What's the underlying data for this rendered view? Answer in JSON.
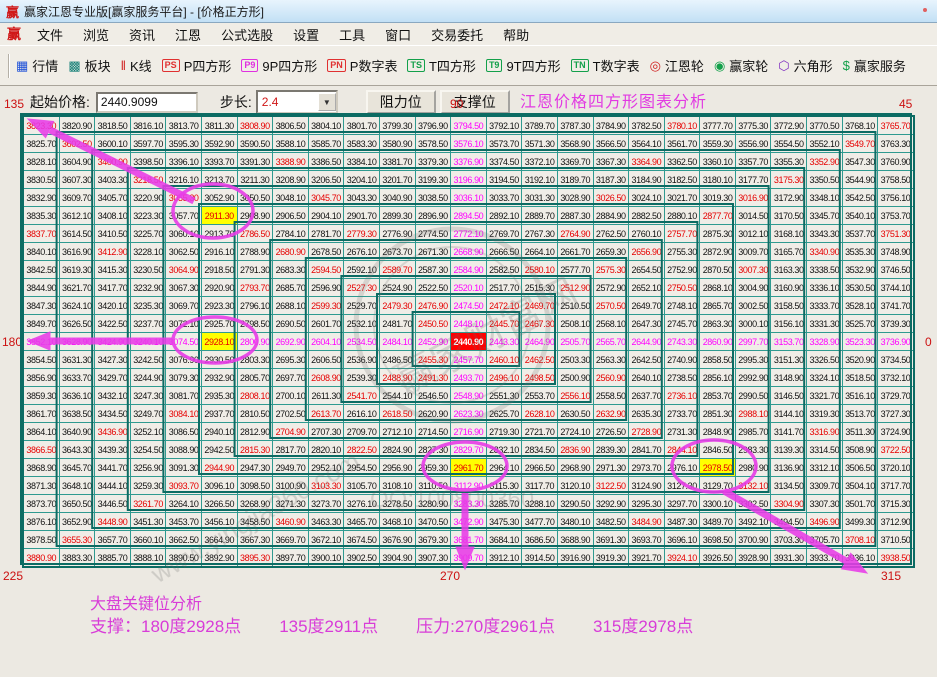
{
  "window": {
    "title": "赢家江恩专业版[赢家服务平台] - [价格正方形]",
    "icon_glyph": "赢"
  },
  "menu": {
    "icon_glyph": "赢",
    "items": [
      "文件",
      "浏览",
      "资讯",
      "江恩",
      "公式选股",
      "设置",
      "工具",
      "窗口",
      "交易委托",
      "帮助"
    ]
  },
  "toolbar": {
    "items": [
      {
        "name": "quotes",
        "label": "行情",
        "glyph": "▦",
        "color": "#1b4fd8",
        "box": false
      },
      {
        "name": "sectors",
        "label": "板块",
        "glyph": "▩",
        "color": "#0e7d74",
        "box": false
      },
      {
        "name": "kline",
        "label": "K线",
        "glyph": "‖",
        "color": "#d02020",
        "box": false
      },
      {
        "name": "p-square",
        "label": "P四方形",
        "glyph": "PS",
        "color": "#e03030",
        "box": true
      },
      {
        "name": "9p-square",
        "label": "9P四方形",
        "glyph": "P9",
        "color": "#e030e0",
        "box": true
      },
      {
        "name": "p-number-table",
        "label": "P数字表",
        "glyph": "PN",
        "color": "#e03030",
        "box": true
      },
      {
        "name": "t-square",
        "label": "T四方形",
        "glyph": "TS",
        "color": "#13a04a",
        "box": true
      },
      {
        "name": "9t-square",
        "label": "9T四方形",
        "glyph": "T9",
        "color": "#13a04a",
        "box": true
      },
      {
        "name": "t-number-table",
        "label": "T数字表",
        "glyph": "TN",
        "color": "#13a04a",
        "box": true
      },
      {
        "name": "gann-wheel",
        "label": "江恩轮",
        "glyph": "◎",
        "color": "#d02020",
        "box": false
      },
      {
        "name": "winner-wheel",
        "label": "赢家轮",
        "glyph": "◉",
        "color": "#13a04a",
        "box": false
      },
      {
        "name": "hexagon",
        "label": "六角形",
        "glyph": "⬡",
        "color": "#8030c0",
        "box": false
      },
      {
        "name": "winner-service",
        "label": "赢家服务",
        "glyph": "$",
        "color": "#13a04a",
        "box": false
      }
    ]
  },
  "controls": {
    "start_price_label": "起始价格:",
    "start_price_value": "2440.9099",
    "step_label": "步长:",
    "step_value": "2.4",
    "resistance_button_label": "阻力位",
    "support_button_label": "支撑位"
  },
  "header": {
    "chart_title": "江恩价格四方形图表分析"
  },
  "angle_labels": {
    "deg135": "135",
    "deg90": "90",
    "deg45": "45",
    "deg180": "180",
    "deg0": "0",
    "deg225": "225",
    "deg270": "270",
    "deg315": "315"
  },
  "analysis": {
    "title": "大盘关键位分析",
    "segments": [
      "支撑：180度2928点",
      "135度2911点",
      "压力:270度2961点",
      "315度2978点"
    ]
  },
  "watermark": {
    "circle_text": "赢家财富网",
    "qq_text": "QQ:100800360",
    "site_text": "www.yingjia360.com"
  },
  "chart_data": {
    "type": "gann_square_spiral",
    "title": "江恩价格四方形图表分析",
    "size": 25,
    "center_cell": {
      "row": 12,
      "col": 12
    },
    "start_price": 2440.9099,
    "step": 2.4,
    "base10": 24409,
    "step10": 24,
    "center_display": "2440.90",
    "corner_display": {
      "top_left": "3823.30",
      "top_right": "3765.70",
      "bottom_left": "3880.90",
      "bottom_right": "3938.50"
    },
    "spiral_rule": "n=0 at center; ring m entered just above bottom-right corner, runs up right column, leftward across top row, down left column, rightward across bottom row; value = truncate2(2440.9099 + 2.4*n)",
    "yellow_cells": [
      [
        5,
        5
      ],
      [
        12,
        5
      ],
      [
        19,
        12
      ],
      [
        19,
        19
      ]
    ],
    "yellow_values": [
      "2911.30",
      "2928.10",
      "2961.70",
      "2978.50"
    ],
    "plain_black_exceptions": [
      [
        11,
        10
      ],
      [
        13,
        10
      ]
    ],
    "key_levels": {
      "support": [
        {
          "angle_deg": 180,
          "price": 2928.1
        },
        {
          "angle_deg": 135,
          "price": 2911.3
        }
      ],
      "resistance": [
        {
          "angle_deg": 270,
          "price": 2961.7
        },
        {
          "angle_deg": 315,
          "price": 2978.5
        }
      ]
    },
    "colors": {
      "grid_line": "#2f9a90",
      "ring_line": "#0c6b63",
      "cell_bg": "#f0ede7",
      "text_black": "#111111",
      "text_red": "#e60000",
      "text_magenta": "#ff00ff",
      "highlight_yellow": "#ffff00",
      "center_bg": "#ff0000",
      "center_text": "#ffffff",
      "annotation": "#e73ce7"
    }
  }
}
